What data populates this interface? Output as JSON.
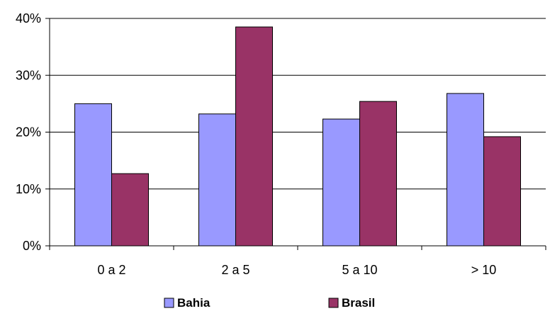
{
  "chart_data": {
    "type": "bar",
    "categories": [
      "0 a 2",
      "2 a 5",
      "5 a 10",
      "> 10"
    ],
    "series": [
      {
        "name": "Bahia",
        "values": [
          25.0,
          23.2,
          22.3,
          26.8
        ],
        "color": "#9999ff"
      },
      {
        "name": "Brasil",
        "values": [
          12.7,
          38.5,
          25.4,
          19.2
        ],
        "color": "#993366"
      }
    ],
    "ylim": [
      0,
      40
    ],
    "yticks": [
      0,
      10,
      20,
      30,
      40
    ],
    "ytick_labels": [
      "0%",
      "10%",
      "20%",
      "30%",
      "40%"
    ],
    "grid": true,
    "legend_position": "bottom"
  }
}
